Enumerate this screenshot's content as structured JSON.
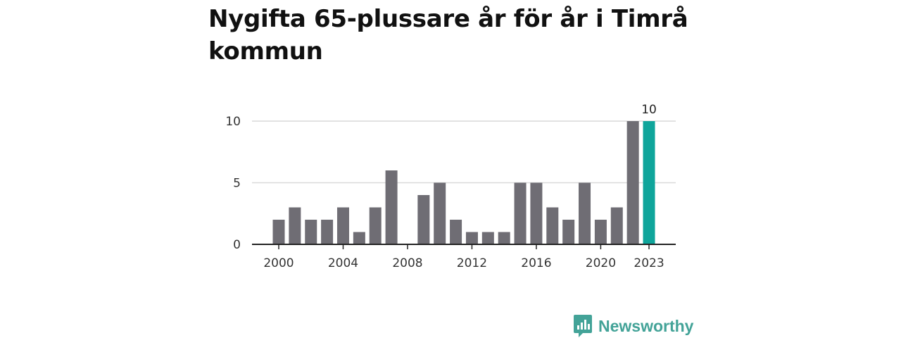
{
  "title": "Nygifta 65-plussare år för år i Timrå kommun",
  "brand": {
    "name": "Newsworthy"
  },
  "colors": {
    "bar": "#6f6d74",
    "highlight": "#0fa59b",
    "brand": "#43a398",
    "grid": "#d9d9d9",
    "axis": "#222222"
  },
  "chart_data": {
    "type": "bar",
    "title": "Nygifta 65-plussare år för år i Timrå kommun",
    "xlabel": "",
    "ylabel": "",
    "categories": [
      2000,
      2001,
      2002,
      2003,
      2004,
      2005,
      2006,
      2007,
      2008,
      2009,
      2010,
      2011,
      2012,
      2013,
      2014,
      2015,
      2016,
      2017,
      2018,
      2019,
      2020,
      2021,
      2022,
      2023
    ],
    "values": [
      2,
      3,
      2,
      2,
      3,
      1,
      3,
      6,
      0,
      4,
      5,
      2,
      1,
      1,
      1,
      5,
      5,
      3,
      2,
      5,
      2,
      3,
      10,
      10
    ],
    "highlight_category": 2023,
    "highlight_label": "10",
    "ylim": [
      0,
      10
    ],
    "yticks": [
      0,
      5,
      10
    ],
    "xticks": [
      "2000",
      "2004",
      "2008",
      "2012",
      "2016",
      "2020",
      "2023"
    ],
    "grid": true,
    "legend": "none"
  }
}
